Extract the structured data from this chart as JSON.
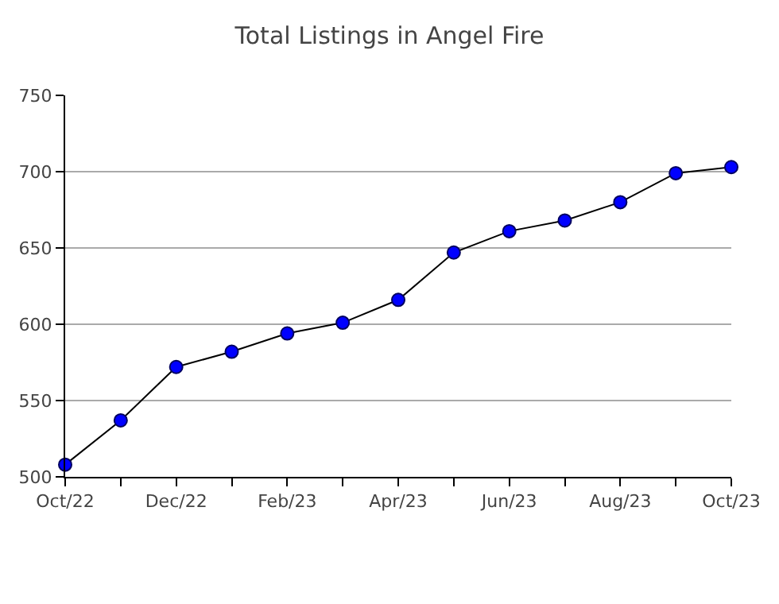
{
  "chart_data": {
    "type": "line",
    "title": "Total Listings in Angel Fire",
    "categories": [
      "Oct/22",
      null,
      "Dec/22",
      null,
      "Feb/23",
      null,
      "Apr/23",
      null,
      "Jun/23",
      null,
      "Aug/23",
      null,
      "Oct/23"
    ],
    "series": [
      {
        "color": "#0000ff",
        "values": [
          508,
          537,
          572,
          582,
          594,
          601,
          616,
          647,
          661,
          668,
          680,
          699,
          703
        ]
      }
    ],
    "ylim": [
      500,
      750
    ],
    "yticks": [
      500,
      550,
      600,
      650,
      700,
      750
    ],
    "grid": "y",
    "marker": "circle",
    "line_style": "solid"
  }
}
